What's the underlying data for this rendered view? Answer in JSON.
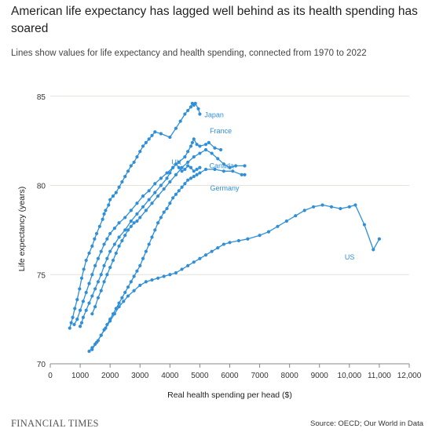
{
  "header": {
    "title": "American life expectancy has lagged well behind as its health spending has soared",
    "subtitle": "Lines show values for life expectancy and health spending, connected from 1970 to 2022"
  },
  "footer": {
    "brand": "FINANCIAL TIMES",
    "source": "Source: OECD; Our World in Data"
  },
  "chart_data": {
    "type": "line",
    "title": "American life expectancy has lagged well behind as its health spending has soared",
    "subtitle": "Lines show values for life expectancy and health spending, connected from 1970 to 2022",
    "xlabel": "Real health spending per head ($)",
    "ylabel": "Life expectancy (years)",
    "xlim": [
      0,
      12000
    ],
    "ylim": [
      70,
      86
    ],
    "x_ticks": [
      0,
      1000,
      2000,
      3000,
      4000,
      5000,
      6000,
      7000,
      8000,
      9000,
      10000,
      11000,
      12000
    ],
    "x_tick_labels": [
      "0",
      "1000",
      "2000",
      "3000",
      "4000",
      "5000",
      "6000",
      "7000",
      "8000",
      "9000",
      "10,000",
      "11,000",
      "12,000"
    ],
    "y_ticks": [
      70,
      75,
      80,
      85
    ],
    "grid": "horizontal",
    "line_color": "#2f8fd8",
    "series": [
      {
        "name": "Japan",
        "x": [
          650,
          700,
          750,
          820,
          900,
          980,
          1050,
          1120,
          1200,
          1300,
          1400,
          1480,
          1550,
          1650,
          1750,
          1800,
          1850,
          1950,
          2000,
          2100,
          2200,
          2300,
          2400,
          2500,
          2600,
          2700,
          2800,
          2900,
          3000,
          3100,
          3200,
          3300,
          3400,
          3500,
          3700,
          4000,
          4200,
          4350,
          4500,
          4600,
          4700,
          4750,
          4800,
          4850,
          4950,
          5000
        ],
        "y": [
          72.0,
          72.3,
          72.6,
          73.1,
          73.6,
          74.2,
          74.8,
          75.3,
          75.8,
          76.2,
          76.6,
          77.0,
          77.3,
          77.7,
          78.1,
          78.4,
          78.6,
          78.9,
          79.2,
          79.4,
          79.6,
          79.9,
          80.2,
          80.5,
          80.8,
          81.1,
          81.3,
          81.6,
          81.9,
          82.2,
          82.4,
          82.6,
          82.8,
          83.0,
          82.9,
          82.7,
          83.2,
          83.6,
          84.0,
          84.2,
          84.4,
          84.6,
          84.5,
          84.6,
          84.3,
          84.0
        ]
      },
      {
        "name": "France",
        "x": [
          800,
          900,
          1000,
          1100,
          1200,
          1300,
          1400,
          1500,
          1600,
          1700,
          1800,
          1900,
          2000,
          2150,
          2300,
          2500,
          2700,
          2900,
          3100,
          3300,
          3500,
          3700,
          3900,
          4100,
          4300,
          4500,
          4600,
          4700,
          4750,
          4800,
          4900,
          5000,
          5200,
          5300,
          5500,
          5700
        ],
        "y": [
          72.2,
          72.5,
          73.0,
          73.5,
          74.0,
          74.5,
          75.0,
          75.5,
          75.9,
          76.3,
          76.7,
          77.0,
          77.3,
          77.6,
          77.9,
          78.2,
          78.6,
          79.0,
          79.4,
          79.7,
          80.1,
          80.4,
          80.7,
          81.0,
          81.3,
          81.6,
          81.9,
          82.2,
          82.4,
          82.6,
          82.3,
          82.2,
          82.3,
          82.4,
          82.1,
          82.0
        ]
      },
      {
        "name": "UK",
        "x": [
          1000,
          1050,
          1100,
          1200,
          1300,
          1400,
          1500,
          1600,
          1700,
          1800,
          1900,
          2000,
          2150,
          2300,
          2500,
          2700,
          2900,
          3100,
          3300,
          3500,
          3700,
          3900,
          4000,
          4100,
          4200,
          4300,
          4400,
          4500,
          4600,
          4700,
          4800,
          4900,
          5000
        ],
        "y": [
          72.1,
          72.3,
          72.6,
          73.0,
          73.4,
          73.8,
          74.2,
          74.6,
          75.0,
          75.5,
          75.9,
          76.3,
          76.7,
          77.1,
          77.5,
          78.0,
          78.4,
          78.8,
          79.2,
          79.6,
          80.0,
          80.4,
          80.7,
          81.0,
          81.2,
          81.0,
          80.8,
          80.9,
          81.1,
          81.0,
          80.8,
          80.9,
          81.0
        ]
      },
      {
        "name": "Canada",
        "x": [
          1400,
          1500,
          1600,
          1700,
          1800,
          1900,
          2000,
          2100,
          2200,
          2300,
          2400,
          2500,
          2600,
          2700,
          2800,
          2900,
          3000,
          3200,
          3400,
          3600,
          3800,
          4000,
          4200,
          4400,
          4600,
          4800,
          5000,
          5200,
          5400,
          5600,
          5800,
          6000,
          6200,
          6500
        ],
        "y": [
          72.8,
          73.2,
          73.7,
          74.1,
          74.6,
          75.0,
          75.4,
          75.8,
          76.2,
          76.6,
          76.9,
          77.2,
          77.5,
          77.7,
          77.9,
          78.0,
          78.2,
          78.6,
          79.0,
          79.4,
          79.8,
          80.2,
          80.6,
          81.0,
          81.3,
          81.6,
          81.8,
          82.0,
          81.8,
          81.5,
          81.2,
          81.0,
          81.1,
          81.1
        ]
      },
      {
        "name": "Germany",
        "x": [
          1300,
          1400,
          1500,
          1600,
          1700,
          1800,
          1900,
          2000,
          2100,
          2200,
          2300,
          2400,
          2500,
          2600,
          2700,
          2800,
          2900,
          3000,
          3100,
          3200,
          3300,
          3400,
          3500,
          3600,
          3700,
          3800,
          3900,
          4000,
          4100,
          4200,
          4300,
          4400,
          4500,
          4600,
          4700,
          4800,
          4900,
          5000,
          5200,
          5500,
          5800,
          6100,
          6400,
          6500
        ],
        "y": [
          70.7,
          70.9,
          71.1,
          71.3,
          71.6,
          71.9,
          72.2,
          72.5,
          72.8,
          73.1,
          73.4,
          73.7,
          74.0,
          74.3,
          74.6,
          74.9,
          75.2,
          75.5,
          75.9,
          76.3,
          76.7,
          77.1,
          77.5,
          77.9,
          78.2,
          78.5,
          78.7,
          79.0,
          79.3,
          79.5,
          79.7,
          79.9,
          80.1,
          80.3,
          80.4,
          80.5,
          80.6,
          80.7,
          80.9,
          80.9,
          80.8,
          80.8,
          80.6,
          80.6
        ]
      },
      {
        "name": "US",
        "x": [
          1400,
          1550,
          1700,
          1850,
          2000,
          2150,
          2300,
          2450,
          2600,
          2800,
          3000,
          3200,
          3400,
          3600,
          3800,
          4000,
          4200,
          4400,
          4600,
          4800,
          5000,
          5200,
          5400,
          5600,
          5800,
          6000,
          6300,
          6600,
          7000,
          7300,
          7600,
          7900,
          8200,
          8500,
          8800,
          9100,
          9400,
          9700,
          10000,
          10200,
          10500,
          10800,
          11000
        ],
        "y": [
          70.8,
          71.2,
          71.6,
          72.0,
          72.4,
          72.8,
          73.2,
          73.5,
          73.8,
          74.1,
          74.4,
          74.6,
          74.7,
          74.8,
          74.9,
          75.0,
          75.1,
          75.3,
          75.5,
          75.7,
          75.9,
          76.1,
          76.3,
          76.5,
          76.7,
          76.8,
          76.9,
          77.0,
          77.2,
          77.4,
          77.7,
          78.0,
          78.3,
          78.6,
          78.8,
          78.9,
          78.8,
          78.7,
          78.8,
          78.9,
          77.8,
          76.4,
          77.0
        ]
      }
    ]
  }
}
